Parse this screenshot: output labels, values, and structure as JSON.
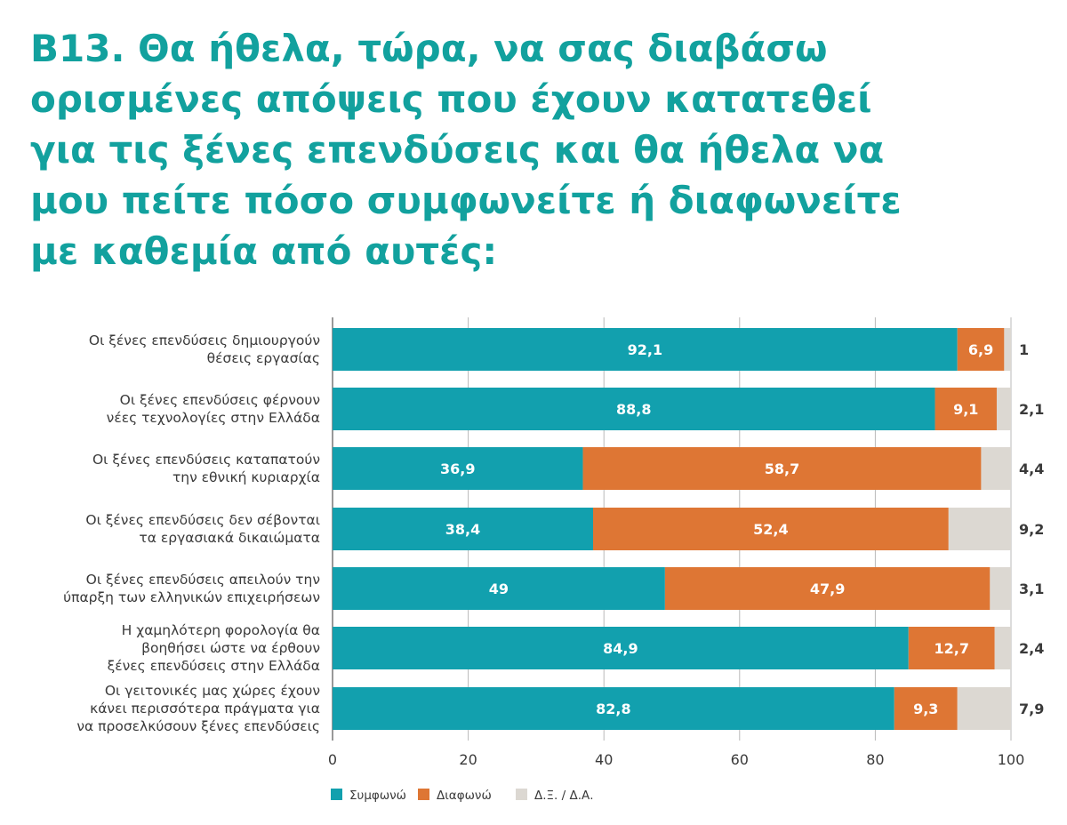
{
  "chart_data": {
    "type": "bar",
    "orientation": "horizontal",
    "stacked": true,
    "title": "B13. Θα ήθελα, τώρα, να σας διαβάσω ορισμένες απόψεις που έχουν κατατεθεί για τις ξένες επενδύσεις και θα ήθελα να μου πείτε πόσο συμφωνείτε ή διαφωνείτε με καθεμία από αυτές:",
    "categories": [
      [
        "Οι ξένες επενδύσεις δημιουργούν",
        "θέσεις εργασίας"
      ],
      [
        "Οι ξένες επενδύσεις φέρνουν",
        "νέες τεχνολογίες στην Ελλάδα"
      ],
      [
        "Οι ξένες επενδύσεις καταπατούν",
        "την εθνική κυριαρχία"
      ],
      [
        "Οι ξένες επενδύσεις δεν σέβονται",
        "τα εργασιακά δικαιώματα"
      ],
      [
        "Οι ξένες επενδύσεις απειλούν την",
        "ύπαρξη των ελληνικών επιχειρήσεων"
      ],
      [
        "Η χαμηλότερη φορολογία θα",
        "βοηθήσει ώστε να έρθουν",
        "ξένες επενδύσεις στην Ελλάδα"
      ],
      [
        "Οι γειτονικές μας χώρες έχουν",
        "κάνει περισσότερα πράγματα για",
        "να προσελκύσουν ξένες επενδύσεις"
      ]
    ],
    "series": [
      {
        "name": "Συμφωνώ",
        "color": "#12a0ae",
        "values": [
          92.1,
          88.8,
          36.9,
          38.4,
          49,
          84.9,
          82.8
        ],
        "labels": [
          "92,1",
          "88,8",
          "36,9",
          "38,4",
          "49",
          "84,9",
          "82,8"
        ]
      },
      {
        "name": "Διαφωνώ",
        "color": "#de7634",
        "values": [
          6.9,
          9.1,
          58.7,
          52.4,
          47.9,
          12.7,
          9.3
        ],
        "labels": [
          "6,9",
          "9,1",
          "58,7",
          "52,4",
          "47,9",
          "12,7",
          "9,3"
        ]
      },
      {
        "name": "Δ.Ξ. / Δ.Α.",
        "color": "#dcd8d2",
        "values": [
          1,
          2.1,
          4.4,
          9.2,
          3.1,
          2.4,
          7.9
        ],
        "labels": [
          "1",
          "2,1",
          "4,4",
          "9,2",
          "3,1",
          "2,4",
          "7,9"
        ]
      }
    ],
    "xlim": [
      0,
      100
    ],
    "xticks": [
      0,
      20,
      40,
      60,
      80,
      100
    ],
    "xtick_labels": [
      "0",
      "20",
      "40",
      "60",
      "80",
      "100"
    ],
    "grid": true,
    "legend": "bottom-left"
  }
}
